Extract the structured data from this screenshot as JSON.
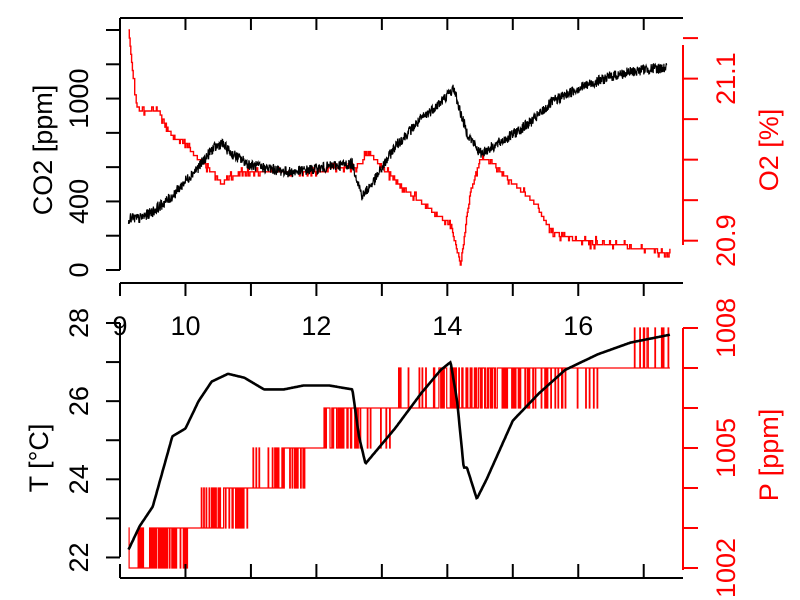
{
  "colors": {
    "primary": "#000000",
    "secondary": "#ff0000",
    "background": "#ffffff"
  },
  "chart_data": [
    {
      "type": "line",
      "xlim": [
        9.0,
        17.6
      ],
      "x_ticks": [
        9,
        10,
        12,
        14,
        16
      ],
      "x_minor_ticks": [
        9,
        10,
        11,
        12,
        13,
        14,
        15,
        16,
        17
      ],
      "x_tick_labels": [
        "9",
        "10",
        "12",
        "14",
        "16"
      ],
      "left_axis": {
        "label": "CO2 [ppm]",
        "ylim": [
          0,
          1400
        ],
        "ticks": [
          0,
          200,
          400,
          600,
          800,
          1000,
          1200,
          1400
        ],
        "tick_labels": [
          "0",
          "400",
          "1000"
        ],
        "labeled_ticks": [
          0,
          400,
          1000
        ]
      },
      "right_axis": {
        "label": "O2 [%]",
        "ylim": [
          20.87,
          21.16
        ],
        "ticks": [
          20.9,
          20.95,
          21.0,
          21.05,
          21.1,
          21.15
        ],
        "tick_labels": [
          "20.9",
          "21.1"
        ],
        "labeled_ticks": [
          20.9,
          21.1
        ]
      },
      "series": [
        {
          "axis": "left",
          "color": "#000000",
          "noise": 45,
          "x": [
            9.13,
            9.3,
            9.5,
            9.8,
            10.0,
            10.2,
            10.4,
            10.55,
            10.7,
            11.0,
            11.3,
            11.6,
            12.0,
            12.3,
            12.55,
            12.7,
            12.9,
            13.2,
            13.6,
            13.9,
            14.1,
            14.2,
            14.3,
            14.5,
            14.7,
            15.0,
            15.3,
            15.6,
            16.0,
            16.5,
            17.0,
            17.35
          ],
          "y": [
            300,
            300,
            340,
            430,
            520,
            600,
            700,
            740,
            680,
            610,
            590,
            570,
            590,
            610,
            620,
            430,
            530,
            720,
            880,
            980,
            1060,
            920,
            800,
            680,
            720,
            790,
            870,
            980,
            1060,
            1130,
            1170,
            1180
          ]
        },
        {
          "axis": "right",
          "color": "#ff0000",
          "noise": 0.006,
          "x": [
            9.13,
            9.2,
            9.25,
            9.3,
            9.6,
            9.7,
            9.8,
            10.0,
            10.2,
            10.35,
            10.55,
            10.7,
            11.0,
            11.5,
            12.0,
            12.3,
            12.6,
            12.8,
            13.0,
            13.4,
            13.8,
            14.05,
            14.2,
            14.35,
            14.5,
            14.65,
            15.0,
            15.3,
            15.6,
            16.0,
            16.5,
            17.0,
            17.4
          ],
          "y": [
            21.16,
            21.1,
            21.07,
            21.06,
            21.06,
            21.04,
            21.03,
            21.02,
            21.0,
            20.99,
            20.97,
            20.98,
            20.985,
            20.985,
            20.985,
            20.99,
            20.99,
            21.01,
            20.99,
            20.96,
            20.935,
            20.92,
            20.87,
            20.96,
            21.0,
            21.0,
            20.97,
            20.95,
            20.91,
            20.9,
            20.895,
            20.89,
            20.885
          ]
        }
      ]
    },
    {
      "type": "line",
      "xlim": [
        9.0,
        17.6
      ],
      "x_ticks": [
        9,
        10,
        11,
        12,
        13,
        14,
        15,
        16,
        17
      ],
      "left_axis": {
        "label": "T [°C]",
        "ylim": [
          21.5,
          28.0
        ],
        "ticks": [
          22,
          23,
          24,
          25,
          26,
          27,
          28
        ],
        "tick_labels": [
          "22",
          "24",
          "26",
          "28"
        ],
        "labeled_ticks": [
          22,
          24,
          26,
          28
        ]
      },
      "right_axis": {
        "label": "P [ppm]",
        "ylim": [
          1001.6,
          1008.0
        ],
        "ticks": [
          1002,
          1003,
          1004,
          1005,
          1006,
          1007,
          1008
        ],
        "tick_labels": [
          "1002",
          "1005",
          "1008"
        ],
        "labeled_ticks": [
          1002,
          1005,
          1008
        ]
      },
      "series": [
        {
          "axis": "left",
          "color": "#000000",
          "noise": 0,
          "x": [
            9.13,
            9.3,
            9.5,
            9.7,
            9.8,
            9.9,
            10.0,
            10.2,
            10.4,
            10.65,
            10.9,
            11.2,
            11.5,
            11.8,
            12.2,
            12.55,
            12.65,
            12.75,
            12.9,
            13.2,
            13.6,
            13.9,
            14.05,
            14.15,
            14.25,
            14.3,
            14.45,
            14.6,
            15.0,
            15.4,
            15.8,
            16.3,
            16.8,
            17.4
          ],
          "y": [
            22.2,
            22.8,
            23.3,
            24.5,
            25.1,
            25.2,
            25.3,
            26.0,
            26.5,
            26.7,
            26.6,
            26.3,
            26.3,
            26.4,
            26.4,
            26.3,
            25.1,
            24.4,
            24.7,
            25.3,
            26.2,
            26.8,
            27.0,
            26.0,
            24.3,
            24.3,
            23.5,
            24.0,
            25.5,
            26.2,
            26.8,
            27.2,
            27.5,
            27.7
          ]
        },
        {
          "axis": "right",
          "color": "#ff0000",
          "noise": 0,
          "x": [
            9.13,
            9.6,
            10.3,
            11.4,
            12.6,
            13.8,
            15.6,
            17.4
          ],
          "y": [
            1002.3,
            1002.3,
            1003.3,
            1004.4,
            1005.8,
            1006.2,
            1006.8,
            1007.2
          ]
        }
      ]
    }
  ]
}
